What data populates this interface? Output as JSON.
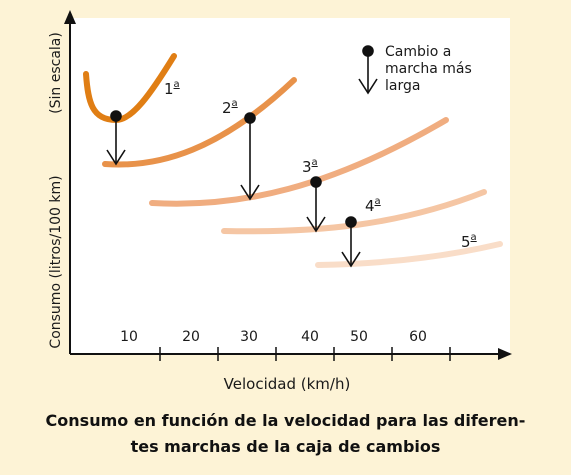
{
  "colors": {
    "background": "#fdf3d6",
    "plot_area": "#ffffff",
    "axis": "#111111",
    "gear1": "#e07e14",
    "gear2": "#e8924a",
    "gear3": "#f0ad80",
    "gear4": "#f5c6a4",
    "gear5": "#f9ddc8"
  },
  "legend": {
    "line1": "Cambio a",
    "line2": "marcha más",
    "line3": "larga"
  },
  "axes": {
    "y_label_main": "Consumo (litros/100 km)",
    "y_label_note": "(Sin escala)",
    "x_label": "Velocidad (km/h)",
    "x_ticks": [
      "10",
      "20",
      "30",
      "40",
      "50",
      "60"
    ]
  },
  "gears": [
    {
      "num": "1",
      "sup": "a"
    },
    {
      "num": "2",
      "sup": "a"
    },
    {
      "num": "3",
      "sup": "a"
    },
    {
      "num": "4",
      "sup": "a"
    },
    {
      "num": "5",
      "sup": "a"
    }
  ],
  "caption": {
    "line1": "Consumo en función de la velocidad para las diferen-",
    "line2": "tes marchas de la caja de cambios"
  }
}
